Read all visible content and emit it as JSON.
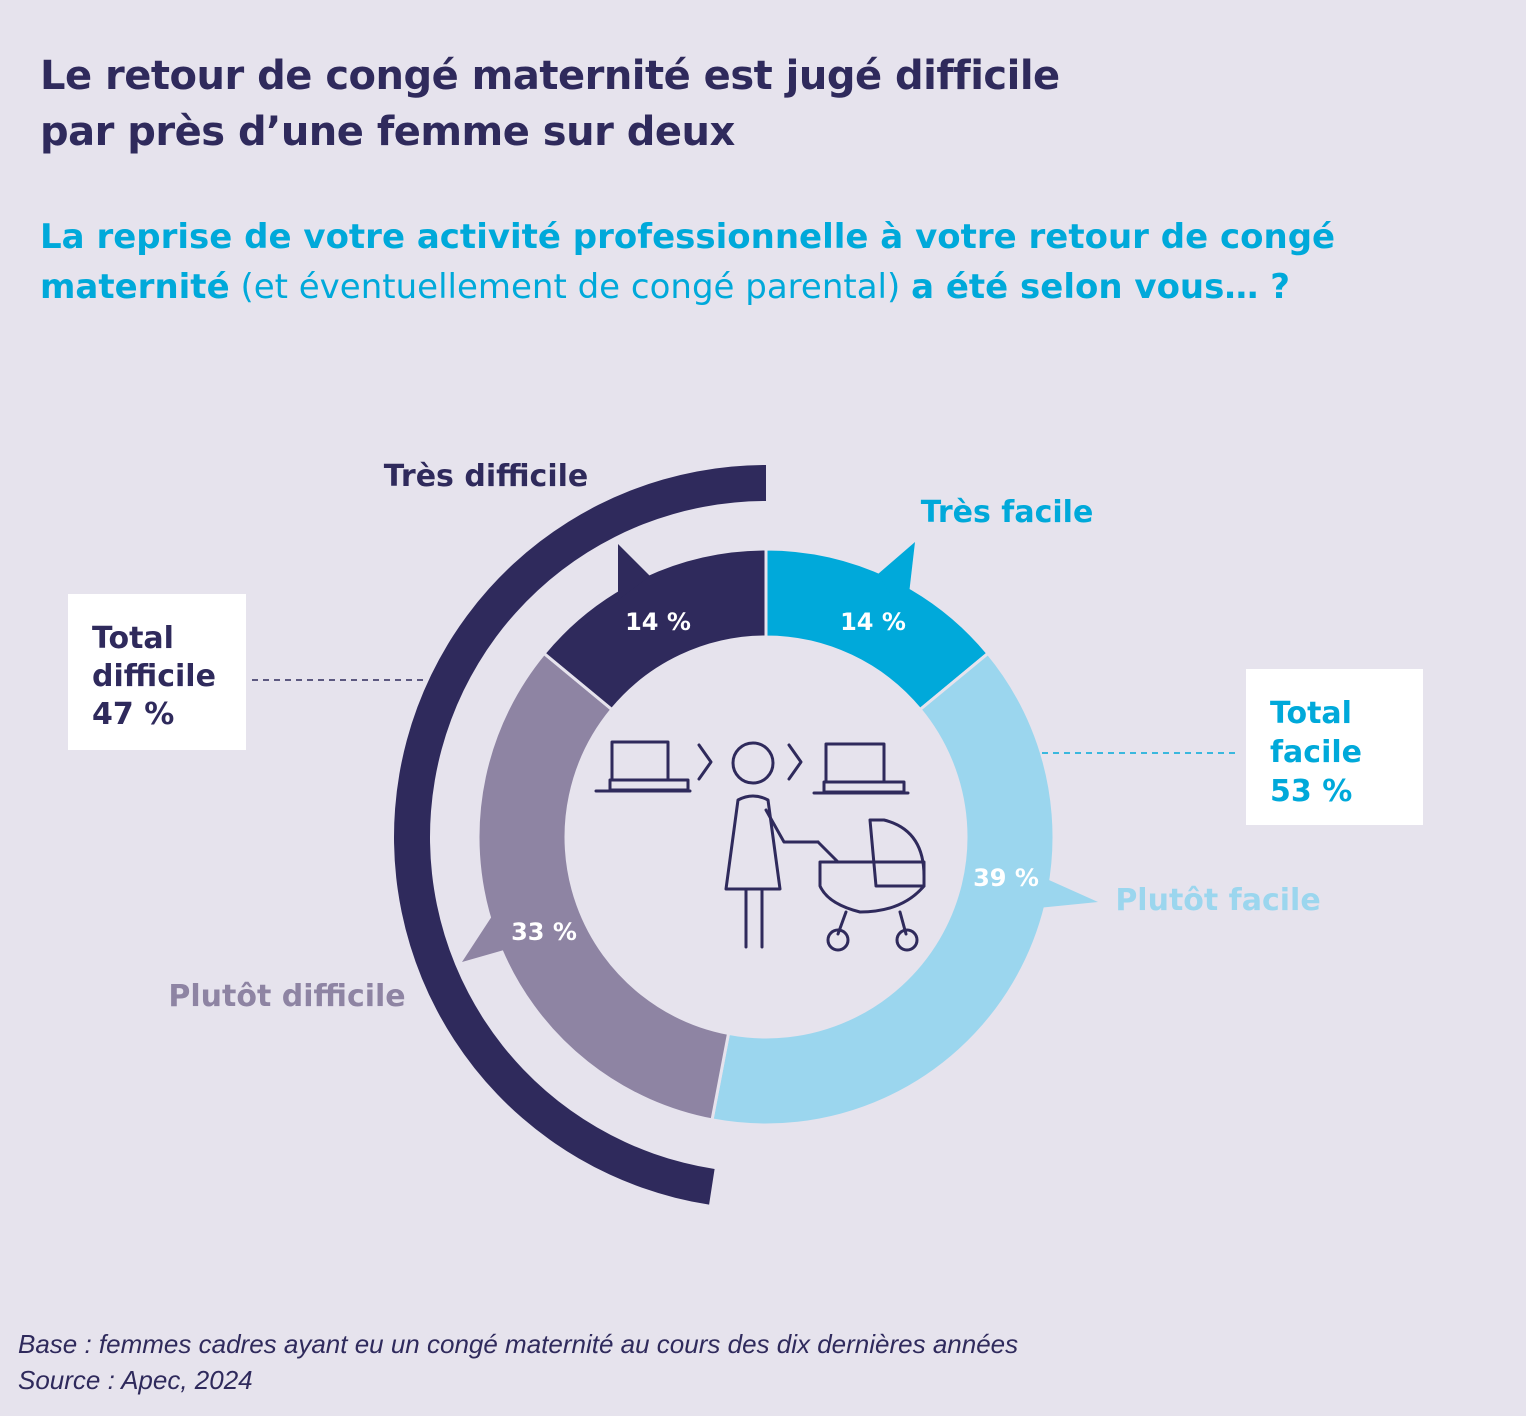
{
  "title": {
    "line1": "Le retour de congé maternité est jugé difficile",
    "line2": "par près d’une femme sur deux"
  },
  "question": {
    "part1": "La reprise de votre activité professionnelle à votre retour de congé maternité",
    "part2": "(et éventuellement de congé parental)",
    "part3": "a été selon vous… ?"
  },
  "chart_data": {
    "type": "pie",
    "variant": "donut",
    "categories": [
      "Très facile",
      "Plutôt facile",
      "Plutôt difficile",
      "Très difficile"
    ],
    "values": [
      14,
      39,
      33,
      14
    ],
    "value_labels": [
      "14 %",
      "39 %",
      "33 %",
      "14 %"
    ],
    "colors": [
      "#00a9da",
      "#9bd6ee",
      "#8e84a3",
      "#2f2a5c"
    ],
    "label_colors": [
      "#00a9da",
      "#9bd6ee",
      "#8e84a3",
      "#2f2a5c"
    ],
    "totals": [
      {
        "label_line1": "Total",
        "label_line2": "difficile",
        "value": "47 %",
        "color": "#2f2a5c"
      },
      {
        "label_line1": "Total",
        "label_line2": "facile",
        "value": "53 %",
        "color": "#00a9da"
      }
    ]
  },
  "footnote": {
    "base": "Base : femmes cadres ayant eu un congé maternité au cours des dix dernières années",
    "source": "Source : Apec, 2024"
  }
}
